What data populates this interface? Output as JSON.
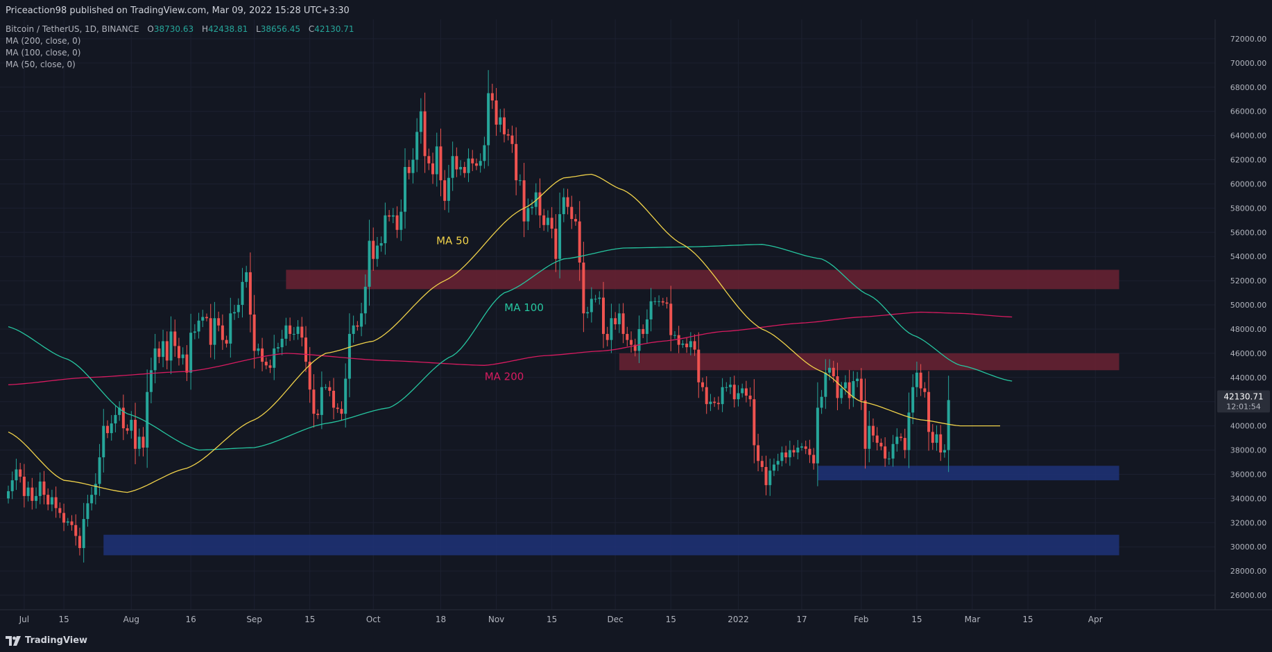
{
  "header": {
    "published_by": "Priceaction98 published on TradingView.com, Mar 09, 2022 15:28 UTC+3:30"
  },
  "legend": {
    "symbol": "Bitcoin / TetherUS, 1D, BINANCE",
    "open_label": "O",
    "open": "38730.63",
    "high_label": "H",
    "high": "42438.81",
    "low_label": "L",
    "low": "38656.45",
    "close_label": "C",
    "close": "42130.71",
    "indicators": [
      "MA (200, close, 0)",
      "MA (100, close, 0)",
      "MA (50, close, 0)"
    ]
  },
  "footer": {
    "brand": "TradingView"
  },
  "colors": {
    "background": "#131722",
    "up": "#26a69a",
    "down": "#ef5350",
    "ma50": "#f0d24a",
    "ma100": "#26c6a0",
    "ma200": "#d81b60",
    "resistance_zone": "#6b2233",
    "support_zone": "#1e3278",
    "text": "#b2b5be"
  },
  "chart_data": {
    "type": "candlestick",
    "ylim": [
      24800,
      73600
    ],
    "y_ticks": [
      "72000.00",
      "70000.00",
      "68000.00",
      "66000.00",
      "64000.00",
      "62000.00",
      "60000.00",
      "58000.00",
      "56000.00",
      "54000.00",
      "52000.00",
      "50000.00",
      "48000.00",
      "46000.00",
      "44000.00",
      "42000.00",
      "40000.00",
      "38000.00",
      "36000.00",
      "34000.00",
      "32000.00",
      "30000.00",
      "28000.00",
      "26000.00"
    ],
    "x_ticks": [
      {
        "label": "Jul",
        "day": 4
      },
      {
        "label": "15",
        "day": 14
      },
      {
        "label": "Aug",
        "day": 31
      },
      {
        "label": "16",
        "day": 46
      },
      {
        "label": "Sep",
        "day": 62
      },
      {
        "label": "15",
        "day": 76
      },
      {
        "label": "Oct",
        "day": 92
      },
      {
        "label": "18",
        "day": 109
      },
      {
        "label": "Nov",
        "day": 123
      },
      {
        "label": "15",
        "day": 137
      },
      {
        "label": "Dec",
        "day": 153
      },
      {
        "label": "15",
        "day": 167
      },
      {
        "label": "2022",
        "day": 184
      },
      {
        "label": "17",
        "day": 200
      },
      {
        "label": "Feb",
        "day": 215
      },
      {
        "label": "15",
        "day": 229
      },
      {
        "label": "Mar",
        "day": 243
      },
      {
        "label": "15",
        "day": 257
      },
      {
        "label": "Apr",
        "day": 274
      }
    ],
    "x_start_date": "2021-07-01",
    "closes": [
      34600,
      35500,
      36400,
      35800,
      34200,
      34900,
      33800,
      34200,
      35400,
      34300,
      33500,
      34100,
      33200,
      32800,
      32000,
      32100,
      31800,
      30900,
      29900,
      32300,
      33600,
      34300,
      35200,
      37400,
      40000,
      39400,
      40200,
      40900,
      41500,
      39800,
      39600,
      40500,
      38100,
      39100,
      38200,
      42800,
      44600,
      46400,
      45700,
      47000,
      45400,
      47800,
      46600,
      45600,
      45900,
      44400,
      47700,
      47800,
      48700,
      49000,
      48900,
      46700,
      48900,
      48300,
      47100,
      46800,
      49300,
      49400,
      50000,
      51900,
      52700,
      49200,
      46200,
      46400,
      45300,
      45000,
      44800,
      46400,
      46500,
      47200,
      48300,
      47600,
      47600,
      48200,
      47300,
      45300,
      43000,
      41000,
      40900,
      43200,
      43200,
      42900,
      41500,
      41400,
      41000,
      43900,
      47600,
      48300,
      48200,
      49300,
      51500,
      55300,
      53800,
      54900,
      55100,
      57400,
      57300,
      57400,
      56200,
      57700,
      61400,
      60900,
      62000,
      64300,
      66000,
      62300,
      61700,
      60800,
      63100,
      60300,
      58600,
      60500,
      62300,
      61200,
      61400,
      60900,
      62100,
      61700,
      61500,
      61900,
      63200,
      67500,
      66900,
      64900,
      65500,
      64100,
      64000,
      63300,
      60300,
      60300,
      56900,
      58000,
      58100,
      59300,
      57400,
      56600,
      57200,
      56300,
      53800,
      57500,
      58900,
      58100,
      57100,
      56900,
      53500,
      49300,
      49400,
      50500,
      50500,
      50600,
      47600,
      47100,
      48900,
      48400,
      49300,
      47600,
      47100,
      46700,
      46200,
      48000,
      47600,
      48800,
      50300,
      50300,
      50300,
      50200,
      50100,
      47500,
      47500,
      46700,
      46800,
      46500,
      47000,
      46300,
      43600,
      43200,
      41800,
      42000,
      41900,
      41800,
      43200,
      43200,
      43400,
      42200,
      42700,
      43100,
      42500,
      42200,
      38400,
      37100,
      36600,
      35100,
      36300,
      36800,
      37100,
      37800,
      37400,
      38000,
      37800,
      38200,
      38300,
      38100,
      37600,
      36900,
      41500,
      42400,
      44400,
      44800,
      44100,
      42300,
      43100,
      43600,
      42300,
      43700,
      43900,
      42100,
      38100,
      40000,
      39200,
      38600,
      38300,
      37300,
      37300,
      38500,
      39100,
      39000,
      38000,
      41100,
      43200,
      44400,
      43100,
      42800,
      39500,
      38600,
      39300,
      37800,
      38000,
      42130
    ],
    "ma50_anchors": [
      [
        0,
        39500
      ],
      [
        14,
        35500
      ],
      [
        30,
        34500
      ],
      [
        45,
        36500
      ],
      [
        62,
        40500
      ],
      [
        80,
        46000
      ],
      [
        92,
        47000
      ],
      [
        110,
        52000
      ],
      [
        130,
        58000
      ],
      [
        140,
        60500
      ],
      [
        147,
        60800
      ],
      [
        155,
        59500
      ],
      [
        170,
        55000
      ],
      [
        190,
        48000
      ],
      [
        205,
        44500
      ],
      [
        215,
        42000
      ],
      [
        230,
        40500
      ],
      [
        240,
        40000
      ],
      [
        250,
        40000
      ]
    ],
    "ma100_anchors": [
      [
        0,
        48200
      ],
      [
        15,
        45500
      ],
      [
        30,
        41000
      ],
      [
        48,
        38000
      ],
      [
        62,
        38200
      ],
      [
        80,
        40200
      ],
      [
        96,
        41500
      ],
      [
        112,
        45800
      ],
      [
        125,
        51000
      ],
      [
        140,
        53800
      ],
      [
        155,
        54700
      ],
      [
        172,
        54800
      ],
      [
        190,
        55000
      ],
      [
        205,
        53800
      ],
      [
        217,
        50800
      ],
      [
        228,
        47500
      ],
      [
        240,
        45000
      ],
      [
        253,
        43700
      ]
    ],
    "ma200_anchors": [
      [
        0,
        43400
      ],
      [
        20,
        44000
      ],
      [
        45,
        44500
      ],
      [
        70,
        46000
      ],
      [
        95,
        45400
      ],
      [
        120,
        45000
      ],
      [
        135,
        45800
      ],
      [
        150,
        46200
      ],
      [
        165,
        47000
      ],
      [
        180,
        47800
      ],
      [
        200,
        48500
      ],
      [
        215,
        49000
      ],
      [
        230,
        49400
      ],
      [
        240,
        49300
      ],
      [
        253,
        49000
      ]
    ],
    "ma_labels": [
      {
        "text": "MA 50",
        "day": 112,
        "price": 55000,
        "color": "#f0d24a"
      },
      {
        "text": "MA 100",
        "day": 130,
        "price": 49500,
        "color": "#26c6a0"
      },
      {
        "text": "MA 200",
        "day": 125,
        "price": 43800,
        "color": "#d81b60"
      }
    ],
    "zones": [
      {
        "name": "resistance-zone-upper",
        "from_day": 70,
        "to_day": 280,
        "low": 51300,
        "high": 52900,
        "kind": "resistance"
      },
      {
        "name": "resistance-zone-lower",
        "from_day": 154,
        "to_day": 280,
        "low": 44600,
        "high": 46000,
        "kind": "resistance"
      },
      {
        "name": "support-zone-upper",
        "from_day": 204,
        "to_day": 280,
        "low": 35500,
        "high": 36700,
        "kind": "support"
      },
      {
        "name": "support-zone-lower",
        "from_day": 24,
        "to_day": 280,
        "low": 29300,
        "high": 31000,
        "kind": "support"
      }
    ],
    "last_price": {
      "price": "42130.71",
      "countdown": "12:01:54"
    }
  }
}
